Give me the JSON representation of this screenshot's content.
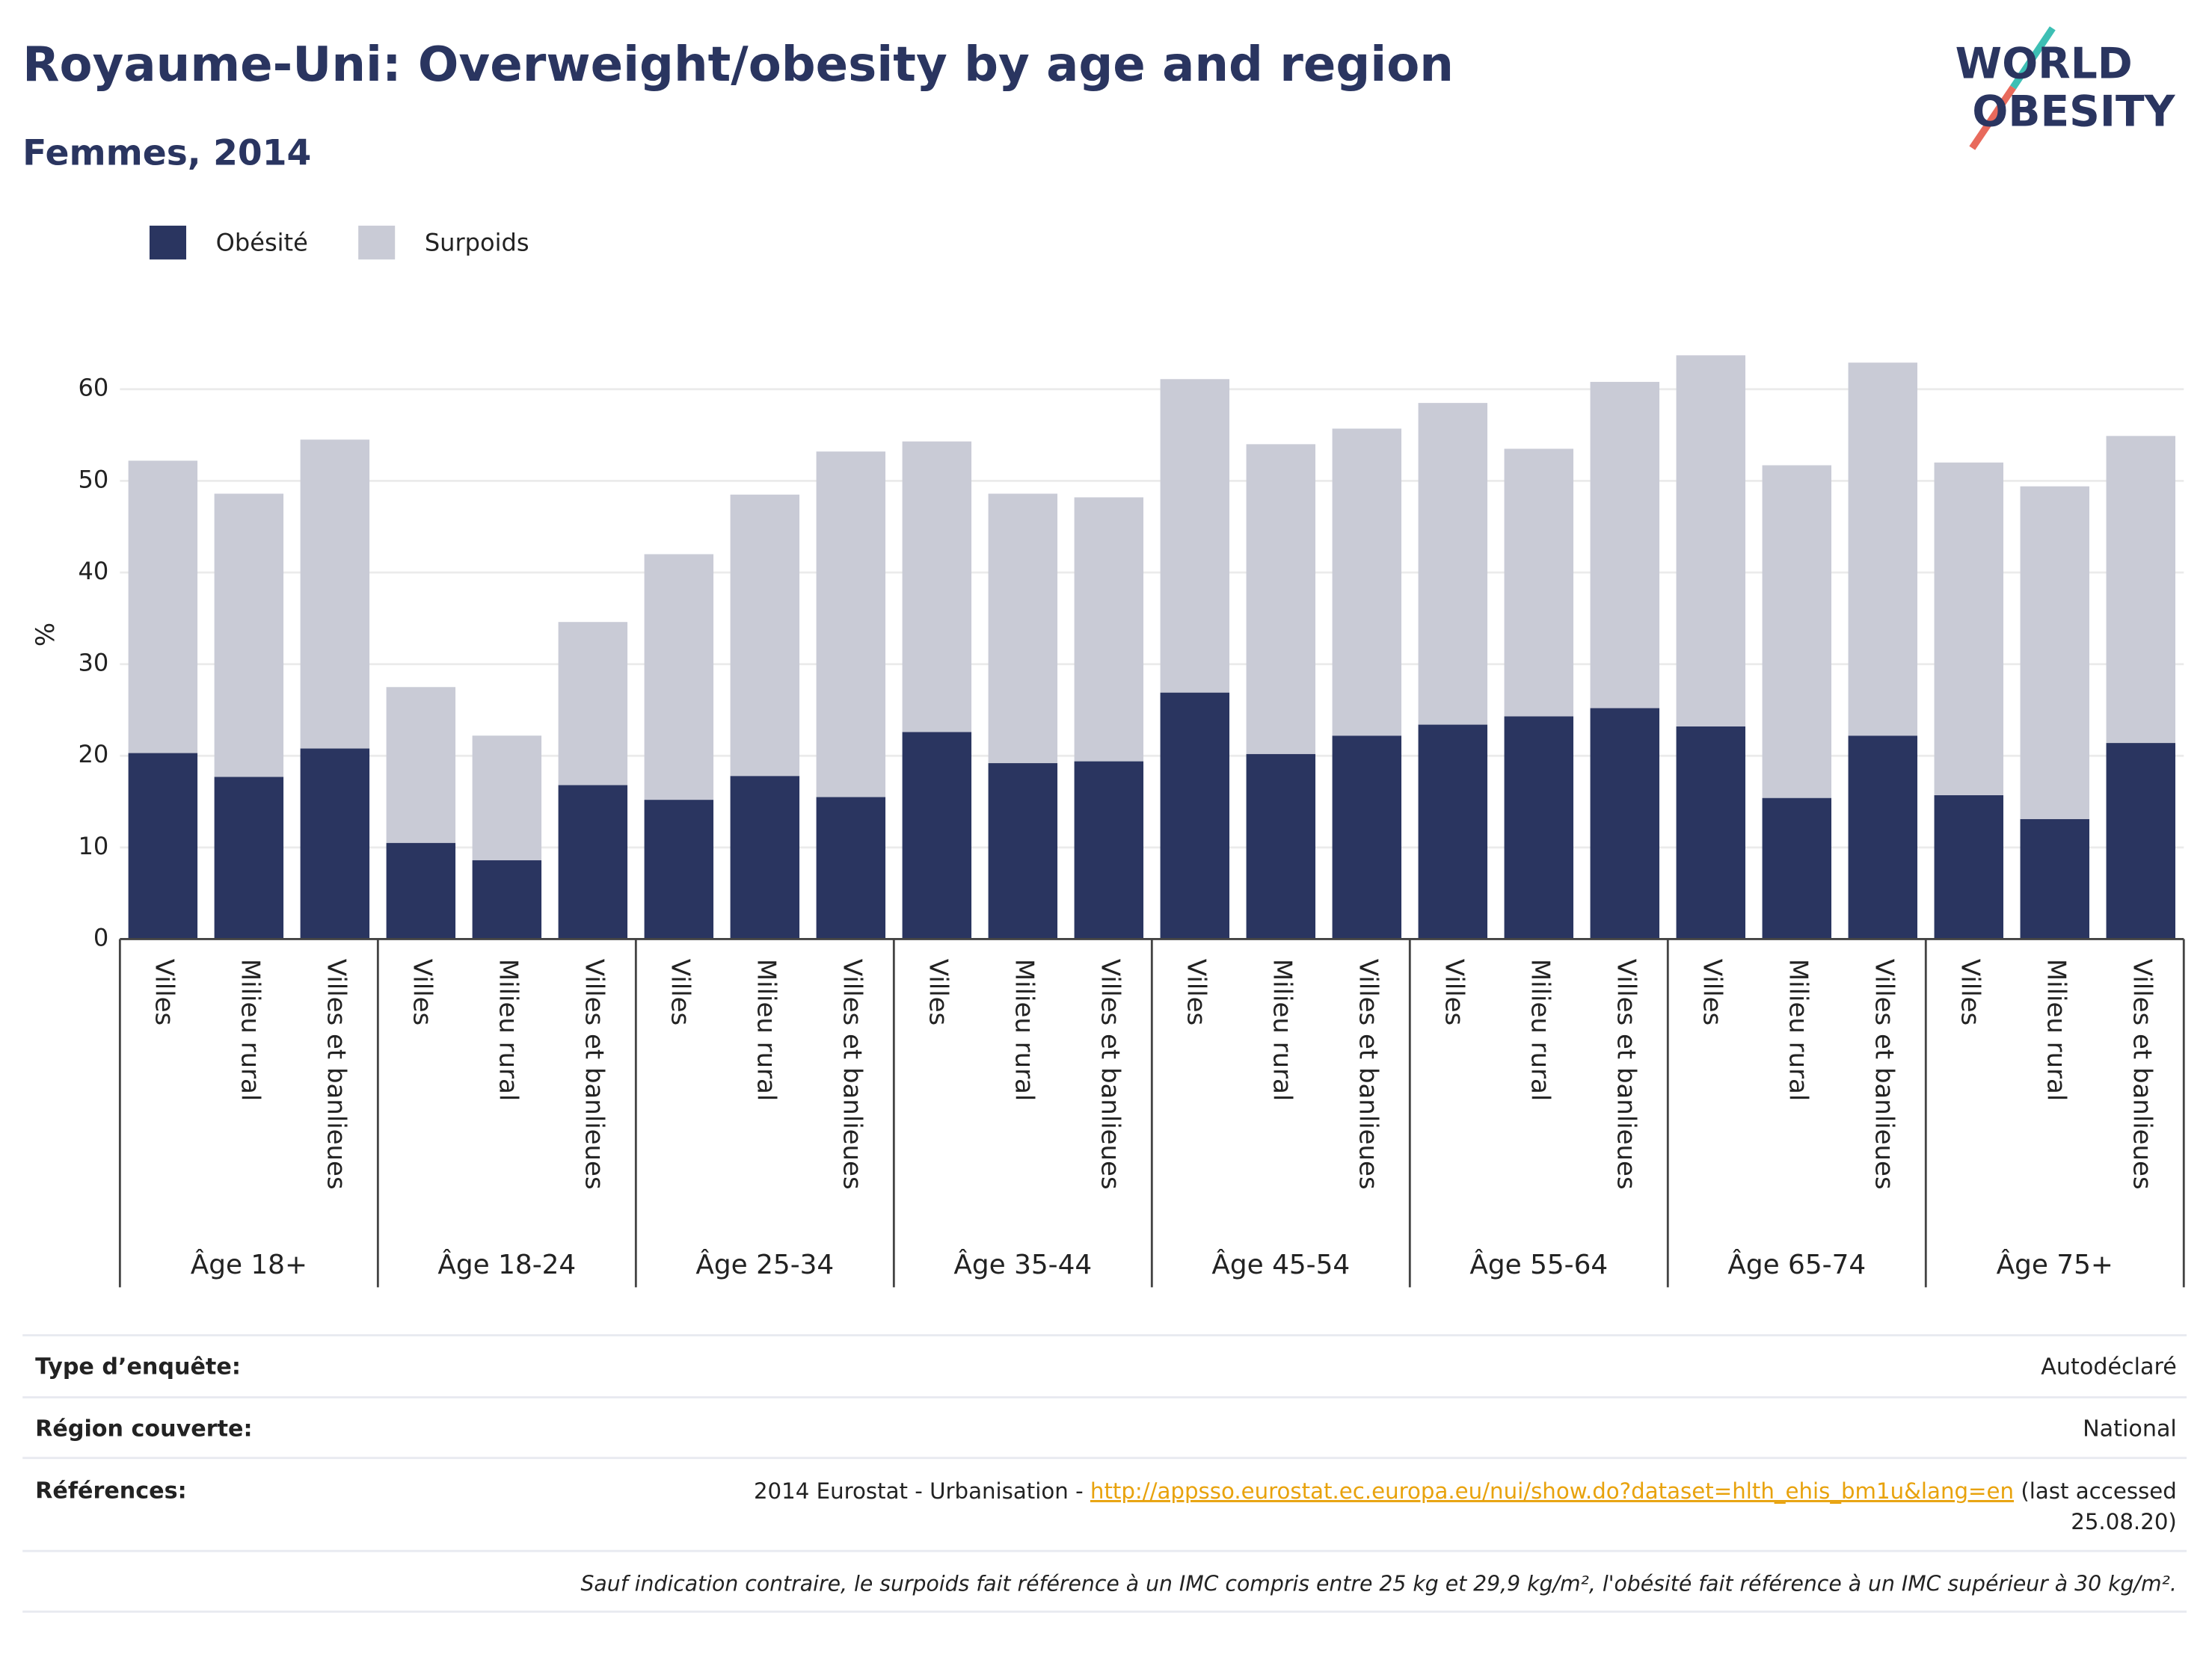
{
  "title": "Royaume-Uni: Overweight/obesity by age and region",
  "subtitle": "Femmes, 2014",
  "logo": {
    "line1": "WORLD",
    "line2": "OBESITY"
  },
  "chart_data": {
    "type": "bar",
    "stacked": true,
    "ylabel": "%",
    "ylim": [
      0,
      65
    ],
    "yticks": [
      0,
      10,
      20,
      30,
      40,
      50,
      60
    ],
    "grid": true,
    "groups": [
      "Âge 18+",
      "Âge 18-24",
      "Âge 25-34",
      "Âge 35-44",
      "Âge 45-54",
      "Âge 55-64",
      "Âge 65-74",
      "Âge 75+"
    ],
    "categories": [
      "Villes",
      "Milieu rural",
      "Villes et banlieues",
      "Villes",
      "Milieu rural",
      "Villes et banlieues",
      "Villes",
      "Milieu rural",
      "Villes et banlieues",
      "Villes",
      "Milieu rural",
      "Villes et banlieues",
      "Villes",
      "Milieu rural",
      "Villes et banlieues",
      "Villes",
      "Milieu rural",
      "Villes et banlieues",
      "Villes",
      "Milieu rural",
      "Villes et banlieues",
      "Villes",
      "Milieu rural",
      "Villes et banlieues"
    ],
    "series": [
      {
        "name": "Obésité",
        "color": "#2a3560",
        "values": [
          20.3,
          17.7,
          20.8,
          10.5,
          8.6,
          16.8,
          15.2,
          17.8,
          15.5,
          22.6,
          19.2,
          19.4,
          26.9,
          20.2,
          22.2,
          23.4,
          24.3,
          25.2,
          23.2,
          15.4,
          22.2,
          15.7,
          13.1,
          21.4
        ]
      },
      {
        "name": "Surpoids",
        "color": "#c9cbd6",
        "values": [
          31.9,
          30.9,
          33.7,
          17.0,
          13.6,
          17.8,
          26.8,
          30.7,
          37.7,
          31.7,
          29.4,
          28.8,
          34.2,
          33.8,
          33.5,
          35.1,
          29.2,
          35.6,
          40.5,
          36.3,
          40.7,
          36.3,
          36.3,
          33.5
        ]
      }
    ]
  },
  "footer": {
    "rows": [
      {
        "label": "Type d’enquête:",
        "value": "Autodéclaré"
      },
      {
        "label": "Région couverte:",
        "value": "National"
      }
    ],
    "references": {
      "label": "Références:",
      "prefix": "2014 Eurostat - Urbanisation - ",
      "link": "http://appsso.eurostat.ec.europa.eu/nui/show.do?dataset=hlth_ehis_bm1u&lang=en",
      "suffix": [
        "(last accessed",
        "25.08.20)"
      ]
    },
    "note": "Sauf indication contraire, le surpoids fait référence à un IMC compris entre 25 kg et 29,9 kg/m², l'obésité fait référence à un IMC supérieur à 30 kg/m²."
  }
}
